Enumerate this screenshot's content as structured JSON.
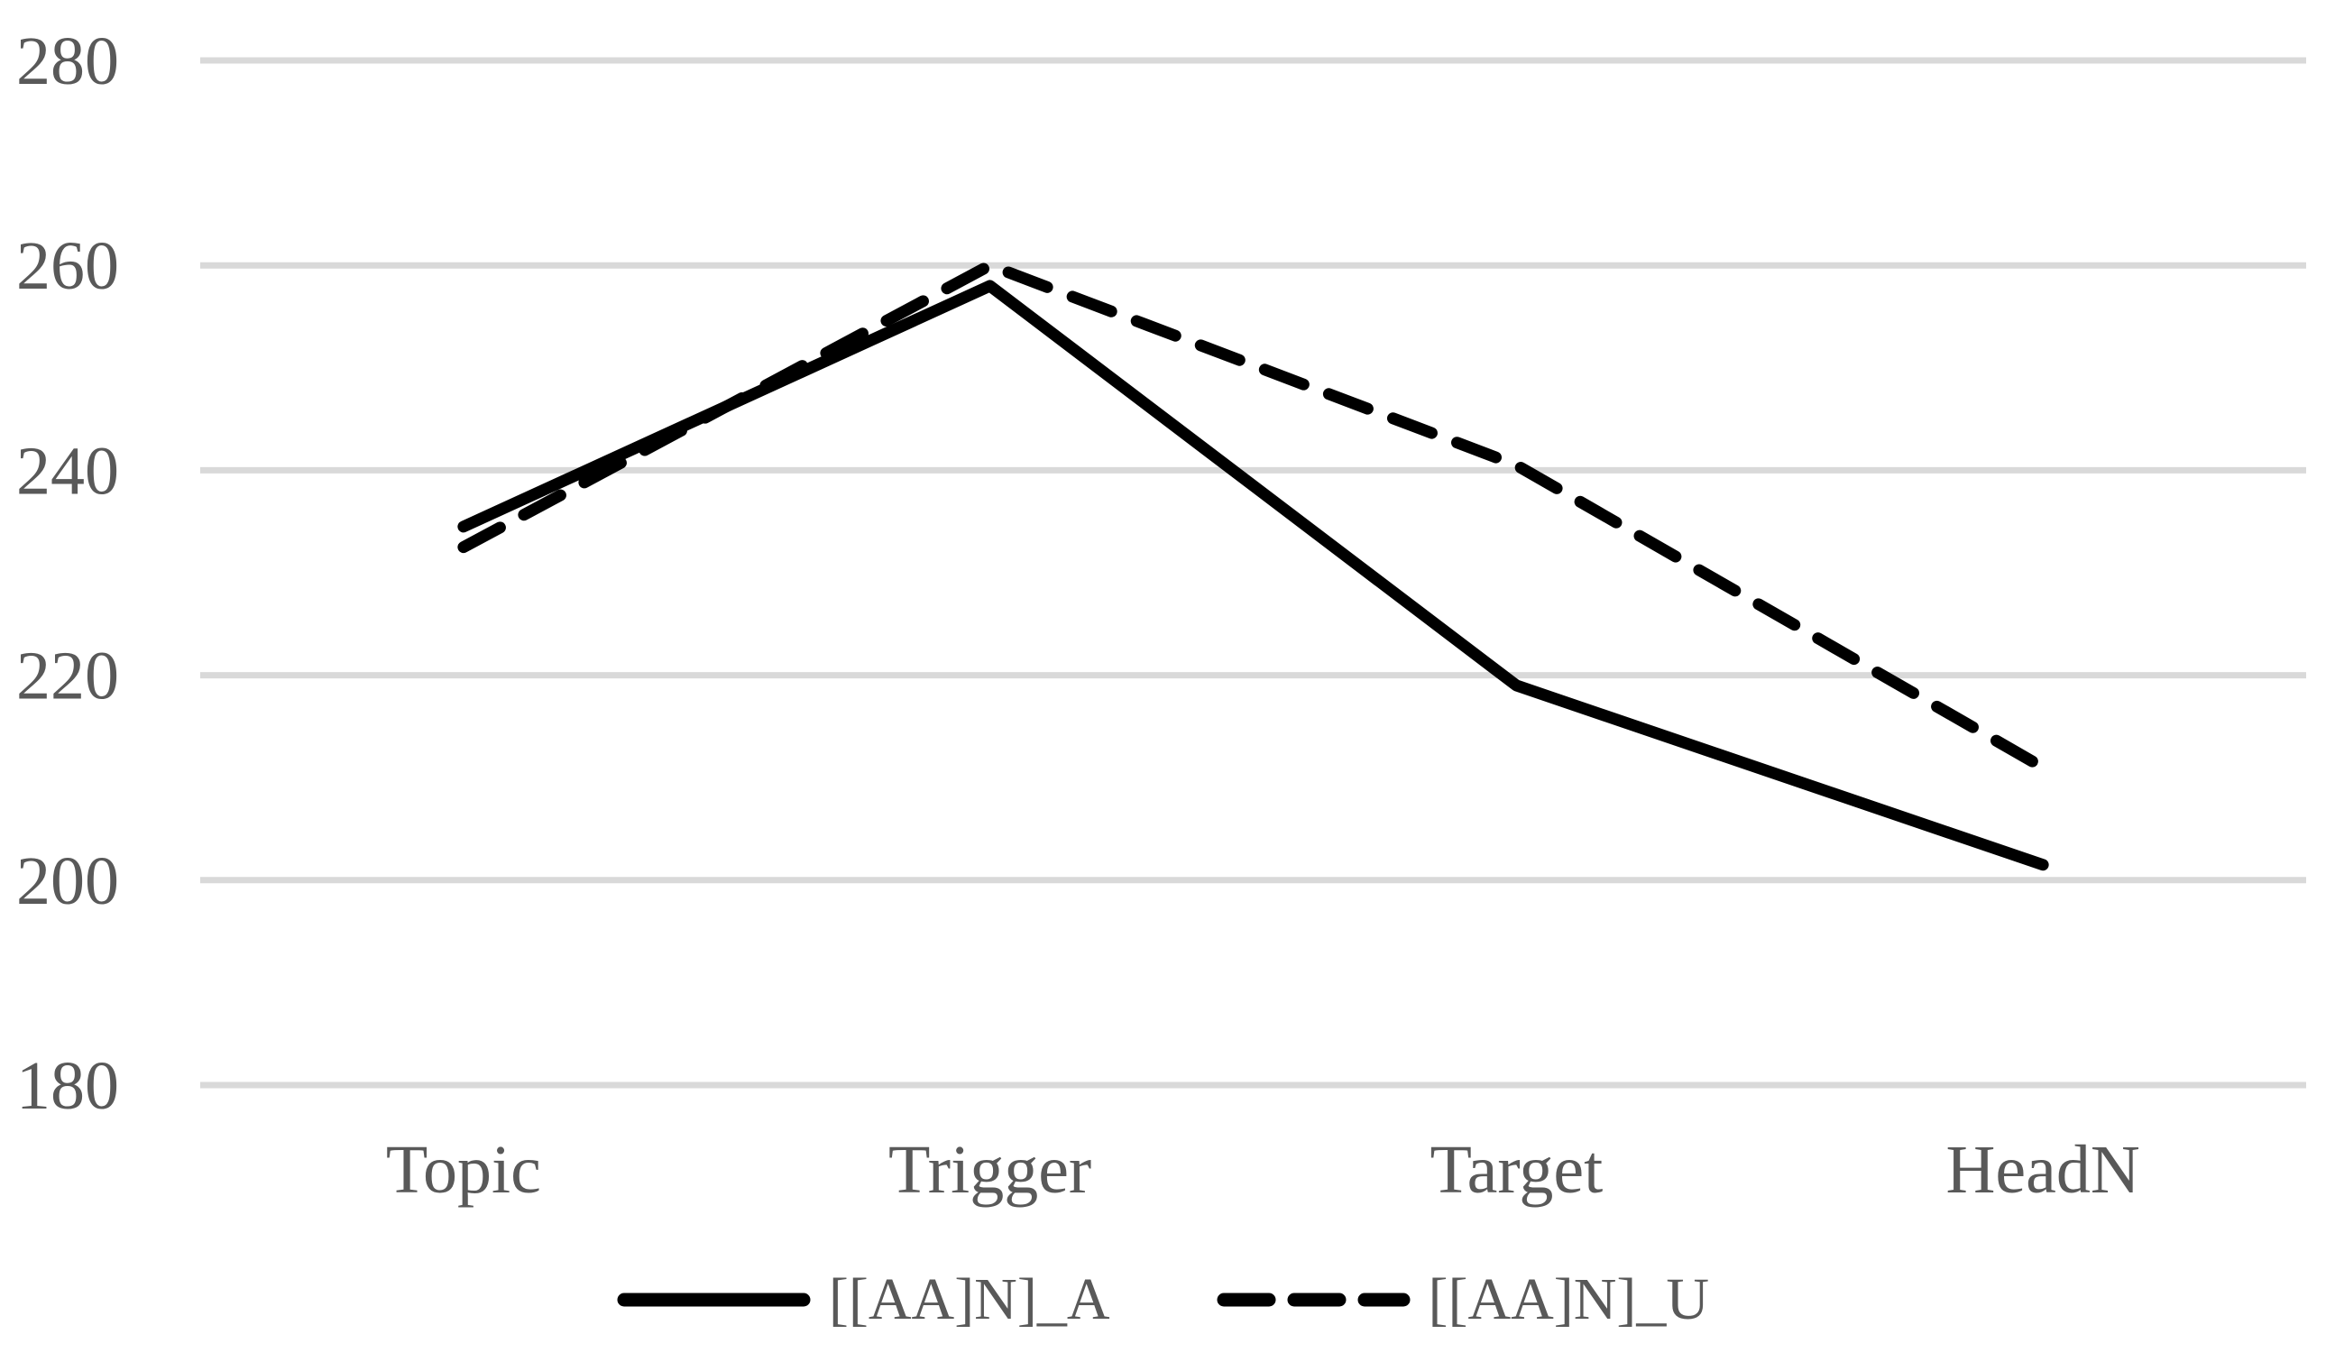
{
  "figure": {
    "background_color": "#ffffff"
  },
  "chart_data": {
    "type": "line",
    "title": "",
    "xlabel": "",
    "ylabel": "",
    "categories": [
      "Topic",
      "Trigger",
      "Target",
      "HeadN"
    ],
    "series": [
      {
        "name": "[[AA]N]_A",
        "style": "solid",
        "color": "#000000",
        "values": [
          234.5,
          258,
          219,
          201.5
        ]
      },
      {
        "name": "[[AA]N]_U",
        "style": "dashed",
        "color": "#000000",
        "values": [
          232.5,
          260,
          240.5,
          211
        ]
      }
    ],
    "ylim": [
      180,
      280
    ],
    "yticks": [
      180,
      200,
      220,
      240,
      260,
      280
    ],
    "grid": "horizontal-only",
    "gridline_color": "#d9d9d9",
    "label_color": "#595959",
    "legend_position": "bottom-center"
  }
}
